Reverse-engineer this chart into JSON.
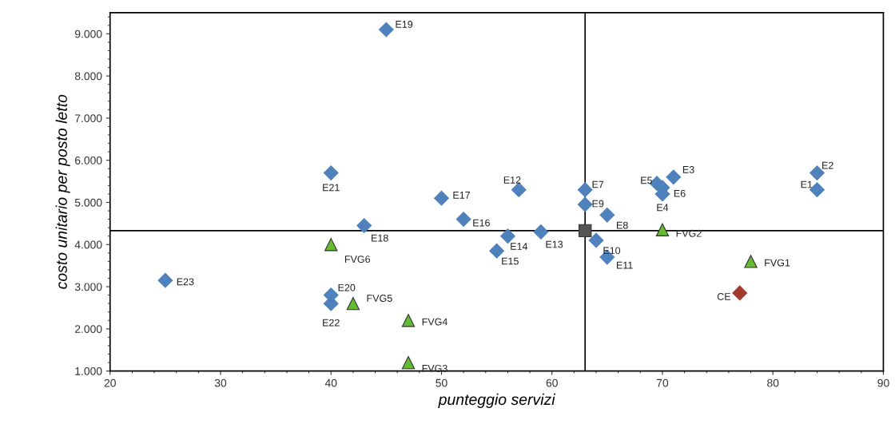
{
  "chart_data": {
    "type": "scatter",
    "xlabel": "punteggio servizi",
    "ylabel": "costo unitario per posto letto",
    "xlim": [
      20,
      90
    ],
    "xticks": [
      20,
      30,
      40,
      50,
      60,
      70,
      80,
      90
    ],
    "ylim": [
      1000,
      9500
    ],
    "yticks": [
      {
        "value": 1000,
        "label": "1.000"
      },
      {
        "value": 2000,
        "label": "2.000"
      },
      {
        "value": 3000,
        "label": "3.000"
      },
      {
        "value": 4000,
        "label": "4.000"
      },
      {
        "value": 5000,
        "label": "5.000"
      },
      {
        "value": 6000,
        "label": "6.000"
      },
      {
        "value": 7000,
        "label": "7.000"
      },
      {
        "value": 8000,
        "label": "8.000"
      },
      {
        "value": 9000,
        "label": "9.000"
      }
    ],
    "grid": false,
    "legend": false,
    "series": [
      {
        "color": "#4f81bd",
        "marker": "diamond",
        "x": [
          84,
          84,
          71,
          70,
          69.5,
          70,
          63,
          65,
          63,
          64,
          65,
          57,
          59,
          56,
          55,
          52,
          50,
          43,
          45,
          40,
          40,
          40,
          25
        ],
        "values": [
          5300,
          5700,
          5600,
          5200,
          5450,
          5350,
          5300,
          4700,
          4950,
          4100,
          3700,
          5300,
          4300,
          4200,
          3850,
          4600,
          5100,
          4450,
          9100,
          2800,
          5700,
          2600,
          3150
        ]
      },
      {
        "color": "#66bb33",
        "marker": "triangle",
        "x": [
          78,
          70,
          47,
          47,
          42,
          40
        ],
        "values": [
          3600,
          4350,
          1200,
          2200,
          2600,
          4000
        ]
      },
      {
        "color": "#a33a2c",
        "marker": "diamond",
        "x": [
          77
        ],
        "values": [
          2850
        ]
      },
      {
        "color": "#555555",
        "marker": "square",
        "x": [
          63
        ],
        "values": [
          4330
        ]
      }
    ],
    "ref_lines": [
      {
        "axis": "x",
        "value": 63,
        "color": "#000000"
      },
      {
        "axis": "y",
        "value": 4330,
        "color": "#000000"
      }
    ],
    "annotations": [
      {
        "text": "E1",
        "x": 84,
        "y": 5300
      },
      {
        "text": "E2",
        "x": 84,
        "y": 5700
      },
      {
        "text": "E3",
        "x": 71,
        "y": 5600
      },
      {
        "text": "E4",
        "x": 70,
        "y": 5200
      },
      {
        "text": "E5",
        "x": 69.5,
        "y": 5450
      },
      {
        "text": "E6",
        "x": 70,
        "y": 5350
      },
      {
        "text": "E7",
        "x": 63,
        "y": 5300
      },
      {
        "text": "E8",
        "x": 65,
        "y": 4700
      },
      {
        "text": "E9",
        "x": 63,
        "y": 4950
      },
      {
        "text": "E10",
        "x": 64,
        "y": 4100
      },
      {
        "text": "E11",
        "x": 65,
        "y": 3700
      },
      {
        "text": "E12",
        "x": 57,
        "y": 5300
      },
      {
        "text": "E13",
        "x": 59,
        "y": 4300
      },
      {
        "text": "E14",
        "x": 56,
        "y": 4200
      },
      {
        "text": "E15",
        "x": 55,
        "y": 3850
      },
      {
        "text": "E16",
        "x": 52,
        "y": 4600
      },
      {
        "text": "E17",
        "x": 50,
        "y": 5100
      },
      {
        "text": "E18",
        "x": 43,
        "y": 4450
      },
      {
        "text": "E19",
        "x": 45,
        "y": 9100
      },
      {
        "text": "E20",
        "x": 40,
        "y": 2800
      },
      {
        "text": "E21",
        "x": 40,
        "y": 5700
      },
      {
        "text": "E22",
        "x": 40,
        "y": 2600
      },
      {
        "text": "E23",
        "x": 25,
        "y": 3150
      },
      {
        "text": "FVG1",
        "x": 78,
        "y": 3600
      },
      {
        "text": "FVG2",
        "x": 70,
        "y": 4350
      },
      {
        "text": "FVG3",
        "x": 47,
        "y": 1200
      },
      {
        "text": "FVG4",
        "x": 47,
        "y": 2200
      },
      {
        "text": "FVG5",
        "x": 42,
        "y": 2600
      },
      {
        "text": "FVG6",
        "x": 40,
        "y": 4000
      },
      {
        "text": "CE",
        "x": 77,
        "y": 2850
      }
    ]
  }
}
